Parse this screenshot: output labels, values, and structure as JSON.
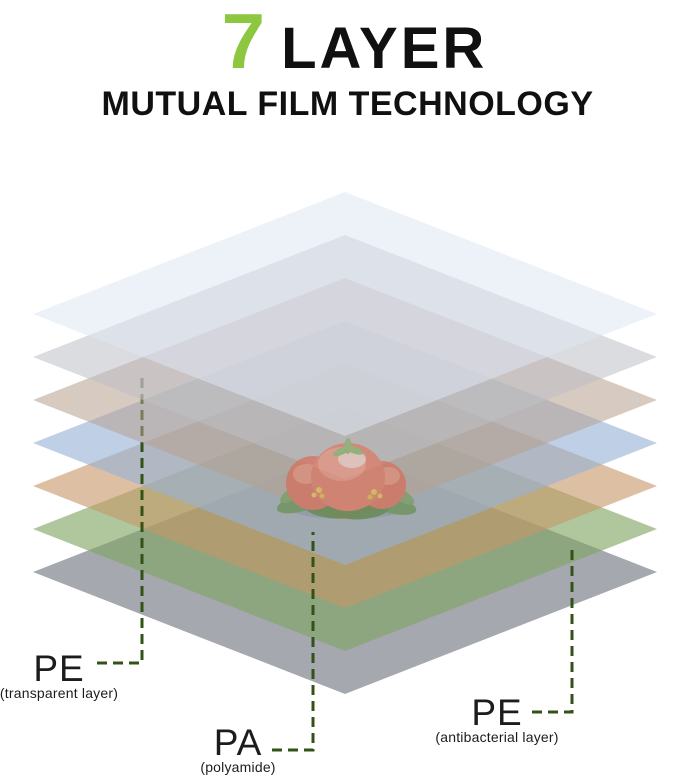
{
  "title": {
    "number": "7",
    "word": "LAYER",
    "subtitle": "MUTUAL FILM TECHNOLOGY",
    "number_color": "#8dc63f",
    "text_color": "#101010"
  },
  "diagram": {
    "callout_color": "#315318",
    "layers": [
      {
        "name": "pe-transparent-film",
        "fill": "rgba(223,229,243,0.55)"
      },
      {
        "name": "film-layer-2",
        "fill": "rgba(189,192,197,0.55)"
      },
      {
        "name": "film-layer-3",
        "fill": "rgba(183,161,142,0.55)"
      },
      {
        "name": "pa-polyamide-film",
        "fill": "rgba(150,178,214,0.62)"
      },
      {
        "name": "film-layer-5",
        "fill": "rgba(198,150,104,0.60)"
      },
      {
        "name": "pe-antibacterial-film",
        "fill": "rgba(128,164,99,0.62)"
      },
      {
        "name": "film-layer-7",
        "fill": "rgba(140,144,151,0.78)"
      }
    ]
  },
  "labels": {
    "left": {
      "abbr": "PE",
      "desc": "(transparent layer)"
    },
    "middle": {
      "abbr": "PA",
      "desc": "(polyamide)"
    },
    "right": {
      "abbr": "PE",
      "desc": "(antibacterial layer)"
    }
  }
}
